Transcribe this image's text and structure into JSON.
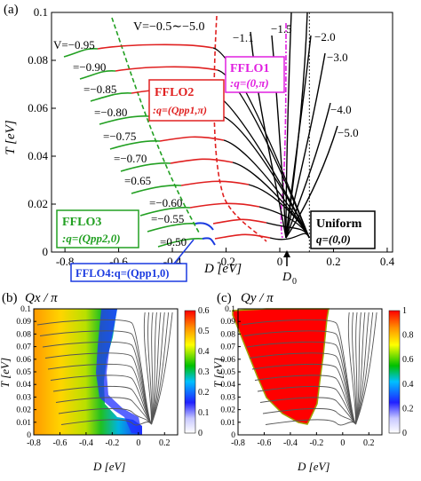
{
  "panel_a": {
    "label": "(a)",
    "xlabel": "D [eV]",
    "ylabel": "T [eV]",
    "xticks": [
      "-0.8",
      "-0.6",
      "-0.4",
      "-0.2",
      "0",
      "0.2",
      "0.4"
    ],
    "yticks": [
      "0",
      "0.02",
      "0.04",
      "0.06",
      "0.08",
      "0.1"
    ],
    "d0_label": "D",
    "d0_sub": "0",
    "curve_labels": {
      "v_range": "V=−0.5∼−5.0",
      "v095": "V=−0.95",
      "v090": "=−0.90",
      "v085": "=−0.85",
      "v080": "=−0.80",
      "v075": "=−0.75",
      "v070": "=−0.70",
      "v065": "=0.65",
      "v060": "=−0.60",
      "v055": "=−0.55",
      "v050": "=0.50",
      "v11": "−1.1",
      "v15": "−1.5",
      "v20": "−2.0",
      "v30": "−3.0",
      "v40": "−4.0",
      "v50": "−5.0"
    },
    "phase_boxes": {
      "fflo1_title": "FFLO1",
      "fflo1_q": ":q=(0,π)",
      "fflo2_title": "FFLO2",
      "fflo2_q": ":q=(Qpp1,π)",
      "fflo3_title": "FFLO3",
      "fflo3_q": ":q=(Qpp2,0)",
      "fflo4": "FFLO4:q=(Qpp1,0)",
      "uniform_title": "Uniform",
      "uniform_q": "q=(0,0)"
    },
    "colors": {
      "red": "#e02020",
      "green": "#22a022",
      "blue": "#1a3ae0",
      "magenta": "#e020e0",
      "black": "#000000"
    }
  },
  "panel_b": {
    "label": "(b)",
    "title": "Qx / π",
    "xlabel": "D [eV]",
    "ylabel": "T [eV]",
    "xticks": [
      "-0.8",
      "-0.6",
      "-0.4",
      "-0.2",
      "0",
      "0.2"
    ],
    "yticks": [
      "0",
      "0.01",
      "0.02",
      "0.03",
      "0.04",
      "0.05",
      "0.06",
      "0.07",
      "0.08",
      "0.09",
      "0.1"
    ],
    "colorbar_ticks": [
      "0",
      "0.1",
      "0.2",
      "0.3",
      "0.4",
      "0.5",
      "0.6"
    ]
  },
  "panel_c": {
    "label": "(c)",
    "title": "Qy / π",
    "xlabel": "D [eV]",
    "ylabel": "T [eV]",
    "xticks": [
      "-0.8",
      "-0.6",
      "-0.4",
      "-0.2",
      "0",
      "0.2"
    ],
    "yticks": [
      "0",
      "0.01",
      "0.02",
      "0.03",
      "0.04",
      "0.05",
      "0.06",
      "0.07",
      "0.08",
      "0.09",
      "0.1"
    ],
    "colorbar_ticks": [
      "0",
      "0.2",
      "0.4",
      "0.6",
      "0.8",
      "1"
    ]
  },
  "chart_data": [
    {
      "type": "line",
      "panel": "(a)",
      "xlabel": "D [eV]",
      "ylabel": "T [eV]",
      "xlim": [
        -0.85,
        0.42
      ],
      "ylim": [
        0,
        0.1
      ],
      "series": [
        {
          "name": "V=-0.95",
          "x": [
            -0.78,
            -0.7,
            -0.55,
            -0.4,
            -0.3
          ],
          "y": [
            0.088,
            0.0895,
            0.0902,
            0.089,
            0.087
          ]
        },
        {
          "name": "V=-0.90",
          "x": [
            -0.78,
            -0.65,
            -0.5,
            -0.35,
            -0.25
          ],
          "y": [
            0.078,
            0.0825,
            0.0835,
            0.082,
            0.078
          ]
        },
        {
          "name": "V=-0.85",
          "x": [
            -0.72,
            -0.6,
            -0.45,
            -0.3,
            -0.2
          ],
          "y": [
            0.068,
            0.074,
            0.0755,
            0.073,
            0.068
          ]
        },
        {
          "name": "V=-0.80",
          "x": [
            -0.66,
            -0.55,
            -0.4,
            -0.25,
            -0.15
          ],
          "y": [
            0.058,
            0.065,
            0.067,
            0.064,
            0.056
          ]
        },
        {
          "name": "V=-0.75",
          "x": [
            -0.6,
            -0.5,
            -0.35,
            -0.22,
            -0.1
          ],
          "y": [
            0.048,
            0.055,
            0.057,
            0.054,
            0.045
          ]
        },
        {
          "name": "V=-0.70",
          "x": [
            -0.55,
            -0.45,
            -0.3,
            -0.18,
            -0.05
          ],
          "y": [
            0.039,
            0.046,
            0.048,
            0.045,
            0.036
          ]
        },
        {
          "name": "V=-0.65",
          "x": [
            -0.5,
            -0.4,
            -0.25,
            -0.12,
            0.0
          ],
          "y": [
            0.031,
            0.037,
            0.039,
            0.036,
            0.027
          ]
        },
        {
          "name": "V=-0.60",
          "x": [
            -0.45,
            -0.35,
            -0.22,
            -0.08,
            0.04
          ],
          "y": [
            0.022,
            0.027,
            0.029,
            0.027,
            0.018
          ]
        },
        {
          "name": "V=-0.55",
          "x": [
            -0.4,
            -0.3,
            -0.2,
            -0.06,
            0.06
          ],
          "y": [
            0.013,
            0.0175,
            0.019,
            0.018,
            0.011
          ]
        },
        {
          "name": "V=-0.50",
          "x": [
            -0.33,
            -0.25,
            -0.18,
            -0.05,
            0.08
          ],
          "y": [
            0.006,
            0.0085,
            0.009,
            0.008,
            0.005
          ]
        }
      ]
    },
    {
      "type": "heatmap",
      "panel": "(b)",
      "title": "Qx / π",
      "xlim": [
        -0.8,
        0.3
      ],
      "ylim": [
        0,
        0.1
      ],
      "colorbar_range": [
        0,
        0.6
      ]
    },
    {
      "type": "heatmap",
      "panel": "(c)",
      "title": "Qy / π",
      "xlim": [
        -0.8,
        0.3
      ],
      "ylim": [
        0,
        0.1
      ],
      "colorbar_range": [
        0,
        1
      ]
    }
  ]
}
